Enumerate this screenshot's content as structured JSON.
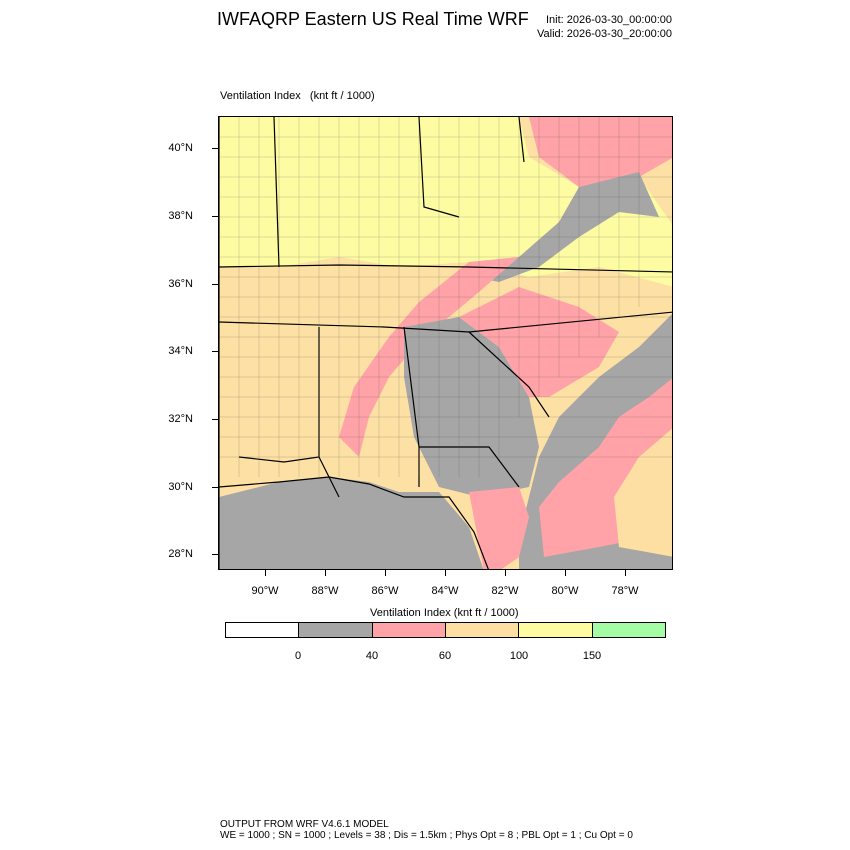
{
  "header": {
    "title": "IWFAQRP Eastern US Real Time WRF",
    "init": "Init: 2026-03-30_00:00:00",
    "valid": "Valid: 2026-03-30_20:00:00"
  },
  "map": {
    "field_label": "Ventilation Index",
    "field_units": "(knt ft / 1000)",
    "lat_labels": [
      "40°N",
      "38°N",
      "36°N",
      "34°N",
      "32°N",
      "30°N",
      "28°N"
    ],
    "lon_labels": [
      "90°W",
      "88°W",
      "86°W",
      "84°W",
      "82°W",
      "80°W",
      "78°W"
    ]
  },
  "legend": {
    "title": "Ventilation Index  (knt ft / 1000)",
    "levels": [
      "0",
      "40",
      "60",
      "100",
      "150"
    ],
    "colors": [
      "#ffffff",
      "#a6a6a6",
      "#ffa3a8",
      "#fddfa4",
      "#fdfca3",
      "#a4fca4"
    ]
  },
  "footer": {
    "line1": "OUTPUT FROM WRF V4.6.1 MODEL",
    "line2": "WE = 1000 ; SN = 1000 ; Levels = 38 ; Dis = 1.5km ; Phys Opt = 8 ; PBL Opt = 1 ; Cu Opt = 0"
  }
}
